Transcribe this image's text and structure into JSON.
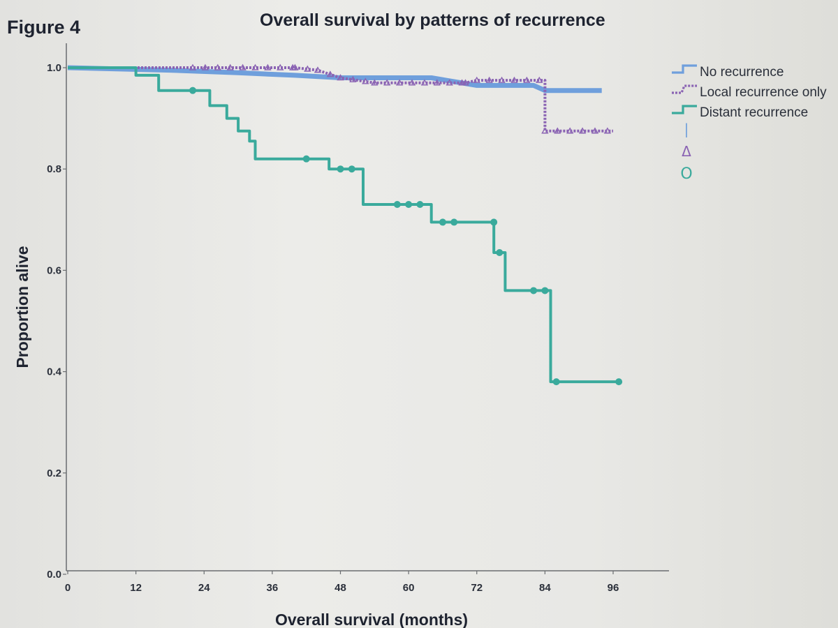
{
  "figure_label": "Figure 4",
  "chart_data": {
    "type": "line",
    "title": "Overall survival by patterns of recurrence",
    "xlabel": "Overall survival (months)",
    "ylabel": "Proportion alive",
    "xlim": [
      0,
      96
    ],
    "ylim": [
      0.0,
      1.0
    ],
    "x_ticks": [
      0,
      12,
      24,
      36,
      48,
      60,
      72,
      84,
      96
    ],
    "y_ticks": [
      0.0,
      0.2,
      0.4,
      0.6,
      0.8,
      1.0
    ],
    "y_tick_labels": [
      "0.0",
      "0.2",
      "0.4",
      "0.6",
      "0.8",
      "1.0"
    ],
    "grid": false,
    "legend_position": "top-right",
    "series": [
      {
        "name": "No recurrence",
        "color": "#6f9fdc",
        "style": "solid",
        "marker": "line",
        "points": [
          [
            0,
            1.0
          ],
          [
            18,
            0.995
          ],
          [
            30,
            0.99
          ],
          [
            40,
            0.985
          ],
          [
            48,
            0.98
          ],
          [
            64,
            0.98
          ],
          [
            72,
            0.965
          ],
          [
            82,
            0.965
          ],
          [
            84,
            0.955
          ],
          [
            94,
            0.955
          ]
        ]
      },
      {
        "name": "Local recurrence only",
        "color": "#8a63b3",
        "style": "dotted",
        "marker": "triangle",
        "points": [
          [
            0,
            1.0
          ],
          [
            40,
            1.0
          ],
          [
            44,
            0.995
          ],
          [
            48,
            0.98
          ],
          [
            54,
            0.97
          ],
          [
            70,
            0.97
          ],
          [
            72,
            0.975
          ],
          [
            84,
            0.975
          ],
          [
            84,
            0.875
          ],
          [
            96,
            0.875
          ]
        ]
      },
      {
        "name": "Distant recurrence",
        "color": "#3aaa9c",
        "style": "solid",
        "marker": "circle",
        "points": [
          [
            0,
            1.0
          ],
          [
            12,
            1.0
          ],
          [
            12,
            0.985
          ],
          [
            16,
            0.985
          ],
          [
            16,
            0.955
          ],
          [
            25,
            0.955
          ],
          [
            25,
            0.925
          ],
          [
            28,
            0.925
          ],
          [
            28,
            0.9
          ],
          [
            30,
            0.9
          ],
          [
            30,
            0.875
          ],
          [
            32,
            0.875
          ],
          [
            32,
            0.855
          ],
          [
            33,
            0.855
          ],
          [
            33,
            0.82
          ],
          [
            46,
            0.82
          ],
          [
            46,
            0.8
          ],
          [
            52,
            0.8
          ],
          [
            52,
            0.73
          ],
          [
            64,
            0.73
          ],
          [
            64,
            0.695
          ],
          [
            75,
            0.695
          ],
          [
            75,
            0.635
          ],
          [
            77,
            0.635
          ],
          [
            77,
            0.56
          ],
          [
            85,
            0.56
          ],
          [
            85,
            0.38
          ],
          [
            97,
            0.38
          ]
        ],
        "censor_marks": [
          [
            22,
            0.955
          ],
          [
            42,
            0.82
          ],
          [
            48,
            0.8
          ],
          [
            50,
            0.8
          ],
          [
            58,
            0.73
          ],
          [
            60,
            0.73
          ],
          [
            62,
            0.73
          ],
          [
            66,
            0.695
          ],
          [
            68,
            0.695
          ],
          [
            75,
            0.695
          ],
          [
            76,
            0.635
          ],
          [
            82,
            0.56
          ],
          [
            84,
            0.56
          ],
          [
            86,
            0.38
          ],
          [
            97,
            0.38
          ]
        ]
      }
    ],
    "legend_symbols": [
      "|",
      "Δ",
      "O"
    ]
  }
}
